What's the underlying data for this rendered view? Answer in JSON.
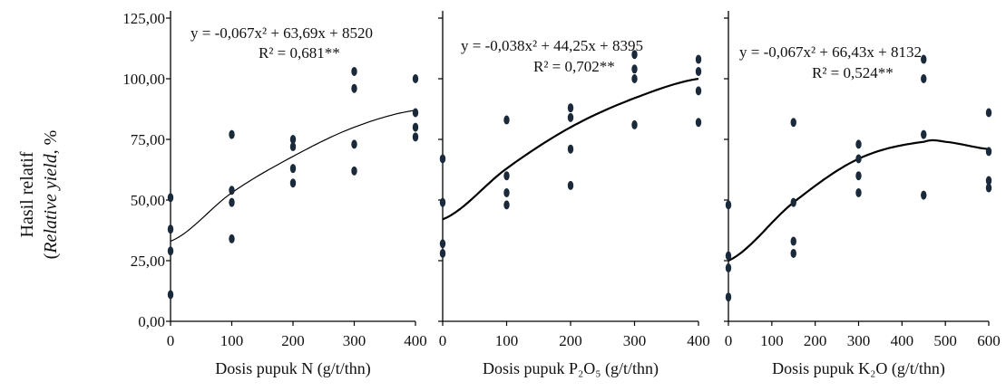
{
  "figure": {
    "ylabel_line1": "Hasil relatif",
    "ylabel_line2_italic": "Relative yield",
    "ylabel_line2_suffix": ", %",
    "y_ticks": [
      "0,00",
      "25,00",
      "50,00",
      "75,00",
      "100,00",
      "125,00"
    ]
  },
  "chart_data": [
    {
      "type": "scatter",
      "panel": "N",
      "xlabel": "Dosis pupuk N (g/t/thn)",
      "ylabel": "Hasil relatif (Relative yield), %",
      "xlim": [
        0,
        400
      ],
      "ylim": [
        0,
        125
      ],
      "x_ticks": [
        "0",
        "100",
        "200",
        "300",
        "400"
      ],
      "equation": "y = -0,067x² + 63,69x + 8520",
      "r2": "R² = 0,681**",
      "trend": {
        "x_start": 0,
        "x_end": 400,
        "y_at": [
          [
            0,
            33
          ],
          [
            100,
            53
          ],
          [
            200,
            68
          ],
          [
            300,
            80
          ],
          [
            400,
            87
          ]
        ]
      },
      "points": [
        {
          "x": 0,
          "y": 11
        },
        {
          "x": 0,
          "y": 29
        },
        {
          "x": 0,
          "y": 38
        },
        {
          "x": 0,
          "y": 51
        },
        {
          "x": 100,
          "y": 34
        },
        {
          "x": 100,
          "y": 49
        },
        {
          "x": 100,
          "y": 54
        },
        {
          "x": 100,
          "y": 77
        },
        {
          "x": 200,
          "y": 57
        },
        {
          "x": 200,
          "y": 63
        },
        {
          "x": 200,
          "y": 72
        },
        {
          "x": 200,
          "y": 75
        },
        {
          "x": 300,
          "y": 62
        },
        {
          "x": 300,
          "y": 73
        },
        {
          "x": 300,
          "y": 96
        },
        {
          "x": 300,
          "y": 103
        },
        {
          "x": 400,
          "y": 76
        },
        {
          "x": 400,
          "y": 80
        },
        {
          "x": 400,
          "y": 86
        },
        {
          "x": 400,
          "y": 100
        }
      ]
    },
    {
      "type": "scatter",
      "panel": "P2O5",
      "xlabel": "Dosis pupuk P₂O₅ (g/t/thn)",
      "xlim": [
        0,
        400
      ],
      "ylim": [
        0,
        125
      ],
      "x_ticks": [
        "0",
        "100",
        "200",
        "300",
        "400"
      ],
      "equation": "y = -0,038x² + 44,25x + 8395",
      "r2": "R² = 0,702**",
      "trend": {
        "x_start": 0,
        "x_end": 400,
        "y_at": [
          [
            0,
            42
          ],
          [
            100,
            63
          ],
          [
            200,
            80
          ],
          [
            300,
            92
          ],
          [
            400,
            100
          ]
        ]
      },
      "points": [
        {
          "x": 0,
          "y": 28
        },
        {
          "x": 0,
          "y": 32
        },
        {
          "x": 0,
          "y": 49
        },
        {
          "x": 0,
          "y": 67
        },
        {
          "x": 100,
          "y": 48
        },
        {
          "x": 100,
          "y": 53
        },
        {
          "x": 100,
          "y": 60
        },
        {
          "x": 100,
          "y": 83
        },
        {
          "x": 200,
          "y": 56
        },
        {
          "x": 200,
          "y": 71
        },
        {
          "x": 200,
          "y": 84
        },
        {
          "x": 200,
          "y": 88
        },
        {
          "x": 300,
          "y": 81
        },
        {
          "x": 300,
          "y": 100
        },
        {
          "x": 300,
          "y": 104
        },
        {
          "x": 300,
          "y": 110
        },
        {
          "x": 400,
          "y": 82
        },
        {
          "x": 400,
          "y": 95
        },
        {
          "x": 400,
          "y": 103
        },
        {
          "x": 400,
          "y": 108
        }
      ]
    },
    {
      "type": "scatter",
      "panel": "K2O",
      "xlabel": "Dosis pupuk K₂O (g/t/thn)",
      "xlim": [
        0,
        600
      ],
      "ylim": [
        0,
        125
      ],
      "x_ticks": [
        "0",
        "100",
        "200",
        "300",
        "400",
        "500",
        "600"
      ],
      "equation": "y = -0,067x² + 66,43x + 8132",
      "r2": "R² = 0,524**",
      "trend": {
        "x_start": 0,
        "x_end": 600,
        "y_at": [
          [
            0,
            25
          ],
          [
            150,
            49
          ],
          [
            300,
            67
          ],
          [
            450,
            74
          ],
          [
            500,
            74
          ],
          [
            600,
            71
          ]
        ]
      },
      "points": [
        {
          "x": 0,
          "y": 10
        },
        {
          "x": 0,
          "y": 22
        },
        {
          "x": 0,
          "y": 27
        },
        {
          "x": 0,
          "y": 48
        },
        {
          "x": 150,
          "y": 28
        },
        {
          "x": 150,
          "y": 33
        },
        {
          "x": 150,
          "y": 49
        },
        {
          "x": 150,
          "y": 82
        },
        {
          "x": 300,
          "y": 53
        },
        {
          "x": 300,
          "y": 60
        },
        {
          "x": 300,
          "y": 67
        },
        {
          "x": 300,
          "y": 73
        },
        {
          "x": 450,
          "y": 52
        },
        {
          "x": 450,
          "y": 77
        },
        {
          "x": 450,
          "y": 100
        },
        {
          "x": 450,
          "y": 108
        },
        {
          "x": 600,
          "y": 55
        },
        {
          "x": 600,
          "y": 58
        },
        {
          "x": 600,
          "y": 70
        },
        {
          "x": 600,
          "y": 86
        }
      ]
    }
  ]
}
